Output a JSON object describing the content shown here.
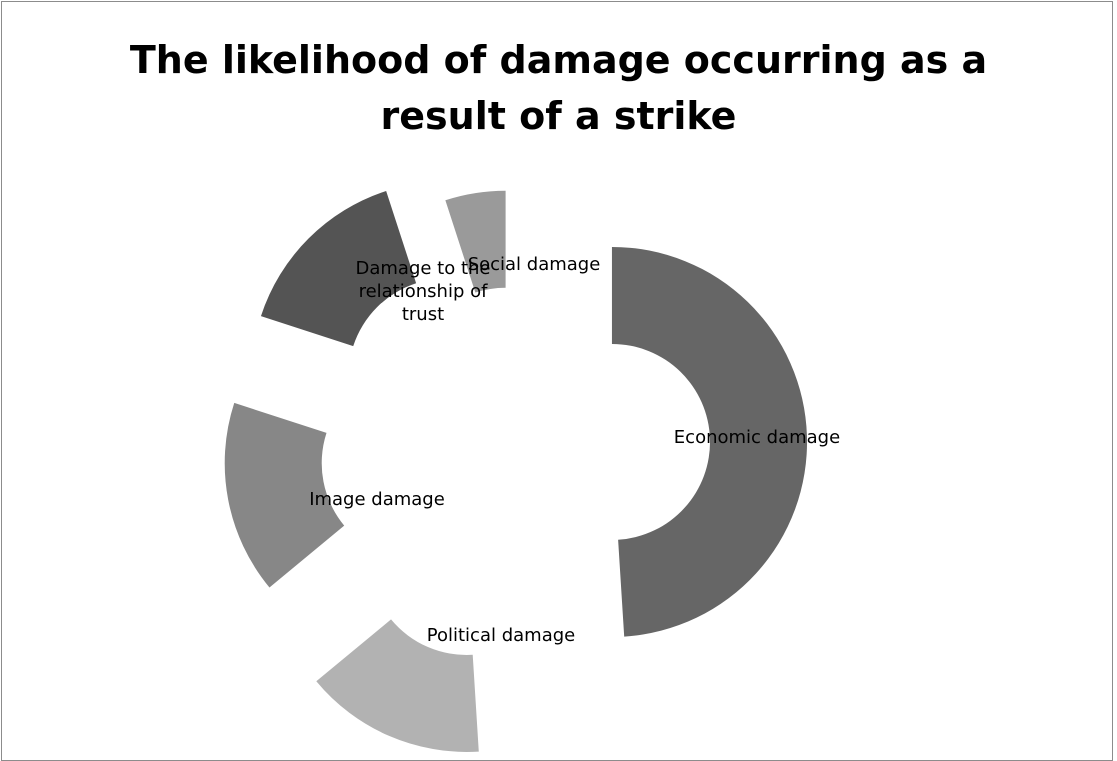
{
  "chart_data": {
    "type": "pie",
    "subtype": "exploded-donut",
    "title_lines": [
      "The likelihood of damage occurring as a",
      "result of a strike"
    ],
    "legend": "none",
    "slices": [
      {
        "label": "Economic damage",
        "value": 49,
        "color": "#666666",
        "label_lines": [
          "Economic damage"
        ]
      },
      {
        "label": "Political damage",
        "value": 15,
        "color": "#b2b2b2",
        "label_lines": [
          "Political damage"
        ]
      },
      {
        "label": "Image damage",
        "value": 16,
        "color": "#878787",
        "label_lines": [
          "Image damage"
        ]
      },
      {
        "label": "Damage to the relationship of trust",
        "value": 15,
        "color": "#545454",
        "label_lines": [
          "Damage to the",
          "relationship of",
          "trust"
        ]
      },
      {
        "label": "Social damage",
        "value": 5,
        "color": "#9a9a9a",
        "label_lines": [
          "Social damage"
        ]
      }
    ]
  }
}
